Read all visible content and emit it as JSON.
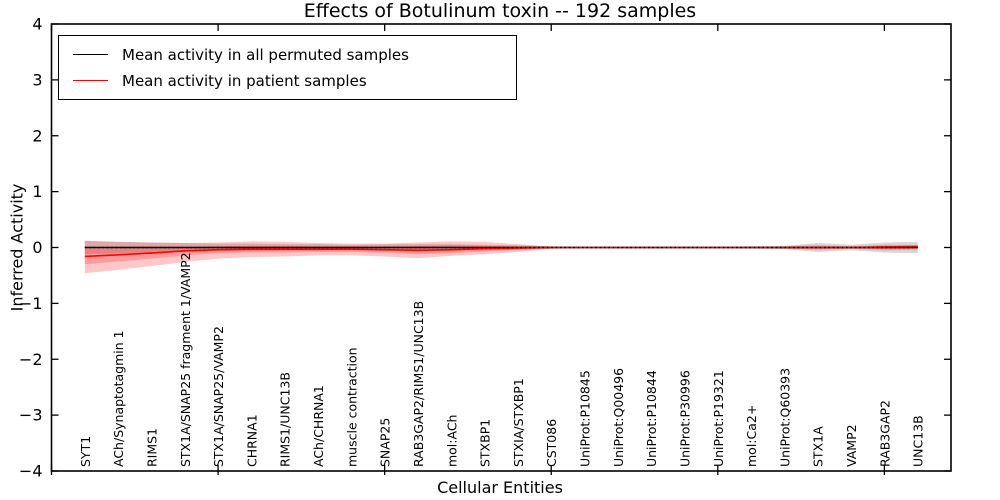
{
  "figure": {
    "title": "Effects of Botulinum toxin -- 192 samples"
  },
  "legend": {
    "items": [
      {
        "label": "Mean activity in all permuted samples",
        "color": "#000000"
      },
      {
        "label": "Mean activity in patient samples",
        "color": "#ff0000"
      }
    ]
  },
  "chart_data": {
    "type": "line",
    "title": "Effects of Botulinum toxin -- 192 samples",
    "xlabel": "Cellular Entities",
    "ylabel": "Inferred Activity",
    "xlim": [
      0,
      27
    ],
    "ylim": [
      -4,
      4
    ],
    "yticks": [
      4,
      3,
      2,
      1,
      0,
      -1,
      -2,
      -3,
      -4
    ],
    "xticks": [
      0,
      5,
      10,
      15,
      20,
      25
    ],
    "grid": false,
    "legend_position": "upper left",
    "categories": [
      "SYT1",
      "ACh/Synaptotagmin 1",
      "RIMS1",
      "STX1A/SNAP25 fragment 1/VAMP2",
      "STX1A/SNAP25/VAMP2",
      "CHRNA1",
      "RIMS1/UNC13B",
      "ACh/CHRNA1",
      "muscle contraction",
      "SNAP25",
      "RAB3GAP2/RIMS1/UNC13B",
      "mol:ACh",
      "STXBP1",
      "STXIA/STXBP1",
      "CST086",
      "UniProt:P10845",
      "UniProt:Q00496",
      "UniProt:P10844",
      "UniProt:P30996",
      "UniProt:P19321",
      "mol:Ca2+",
      "UniProt:Q60393",
      "STX1A",
      "VAMP2",
      "RAB3GAP2",
      "UNC13B"
    ],
    "series": [
      {
        "name": "Mean activity in all permuted samples",
        "color": "#000000",
        "style": "solid",
        "width": 1.4,
        "values": [
          0,
          0,
          0,
          0,
          0,
          0,
          0,
          0,
          0,
          0,
          0,
          0,
          0,
          0,
          0,
          0,
          0,
          0,
          0,
          0,
          0,
          0,
          0,
          0,
          0,
          0
        ]
      },
      {
        "name": "Mean activity in patient samples",
        "color": "#ff0000",
        "style": "solid",
        "width": 1.6,
        "values": [
          -0.16,
          -0.13,
          -0.1,
          -0.06,
          -0.04,
          -0.03,
          -0.03,
          -0.03,
          -0.03,
          -0.04,
          -0.05,
          -0.04,
          -0.02,
          -0.01,
          0,
          0,
          0,
          0,
          0,
          0,
          0,
          0,
          0,
          0,
          0.01,
          0.02
        ]
      },
      {
        "name": "zero reference",
        "color": "#000000",
        "style": "dotted",
        "width": 1.6,
        "values": [
          0,
          0,
          0,
          0,
          0,
          0,
          0,
          0,
          0,
          0,
          0,
          0,
          0,
          0,
          0,
          0,
          0,
          0,
          0,
          0,
          0,
          0,
          0,
          0,
          0,
          0
        ]
      }
    ],
    "bands": [
      {
        "name": "permuted-spread",
        "color": "rgba(0,0,0,0.16)",
        "upper": [
          0.12,
          0.1,
          0.09,
          0.08,
          0.07,
          0.07,
          0.06,
          0.06,
          0.05,
          0.06,
          0.06,
          0.06,
          0.05,
          0.04,
          0.02,
          0.015,
          0.015,
          0.015,
          0.015,
          0.015,
          0.02,
          0.03,
          0.08,
          0.05,
          0.09,
          0.1
        ],
        "lower": [
          -0.12,
          -0.1,
          -0.09,
          -0.08,
          -0.07,
          -0.07,
          -0.06,
          -0.06,
          -0.05,
          -0.06,
          -0.06,
          -0.06,
          -0.05,
          -0.04,
          -0.02,
          -0.015,
          -0.015,
          -0.015,
          -0.015,
          -0.015,
          -0.02,
          -0.03,
          -0.08,
          -0.05,
          -0.09,
          -0.1
        ]
      },
      {
        "name": "patient-spread-outer",
        "color": "rgba(255,0,0,0.22)",
        "upper": [
          0.12,
          0.1,
          0.09,
          0.08,
          0.09,
          0.11,
          0.1,
          0.08,
          0.07,
          0.07,
          0.09,
          0.11,
          0.1,
          0.06,
          0.02,
          0.01,
          0.01,
          0.01,
          0.01,
          0.01,
          0.01,
          0.02,
          0.04,
          0.02,
          0.05,
          0.04
        ],
        "lower": [
          -0.46,
          -0.4,
          -0.33,
          -0.26,
          -0.2,
          -0.17,
          -0.16,
          -0.14,
          -0.14,
          -0.16,
          -0.19,
          -0.15,
          -0.12,
          -0.08,
          -0.02,
          -0.01,
          -0.01,
          -0.01,
          -0.01,
          -0.01,
          -0.01,
          -0.02,
          -0.04,
          -0.02,
          -0.05,
          -0.04
        ]
      },
      {
        "name": "patient-spread-inner",
        "color": "rgba(255,0,0,0.22)",
        "upper": [
          -0.02,
          -0.02,
          -0.01,
          0.01,
          0.02,
          0.03,
          0.03,
          0.02,
          0.02,
          0.02,
          0.03,
          0.04,
          0.03,
          0.02,
          0.01,
          0.005,
          0.005,
          0.005,
          0.005,
          0.005,
          0.005,
          0.01,
          0.02,
          0.01,
          0.03,
          0.03
        ],
        "lower": [
          -0.3,
          -0.25,
          -0.2,
          -0.14,
          -0.1,
          -0.09,
          -0.09,
          -0.08,
          -0.08,
          -0.09,
          -0.12,
          -0.1,
          -0.07,
          -0.04,
          -0.01,
          -0.005,
          -0.005,
          -0.005,
          -0.005,
          -0.005,
          -0.005,
          -0.01,
          -0.02,
          -0.01,
          -0.03,
          -0.02
        ]
      }
    ]
  }
}
